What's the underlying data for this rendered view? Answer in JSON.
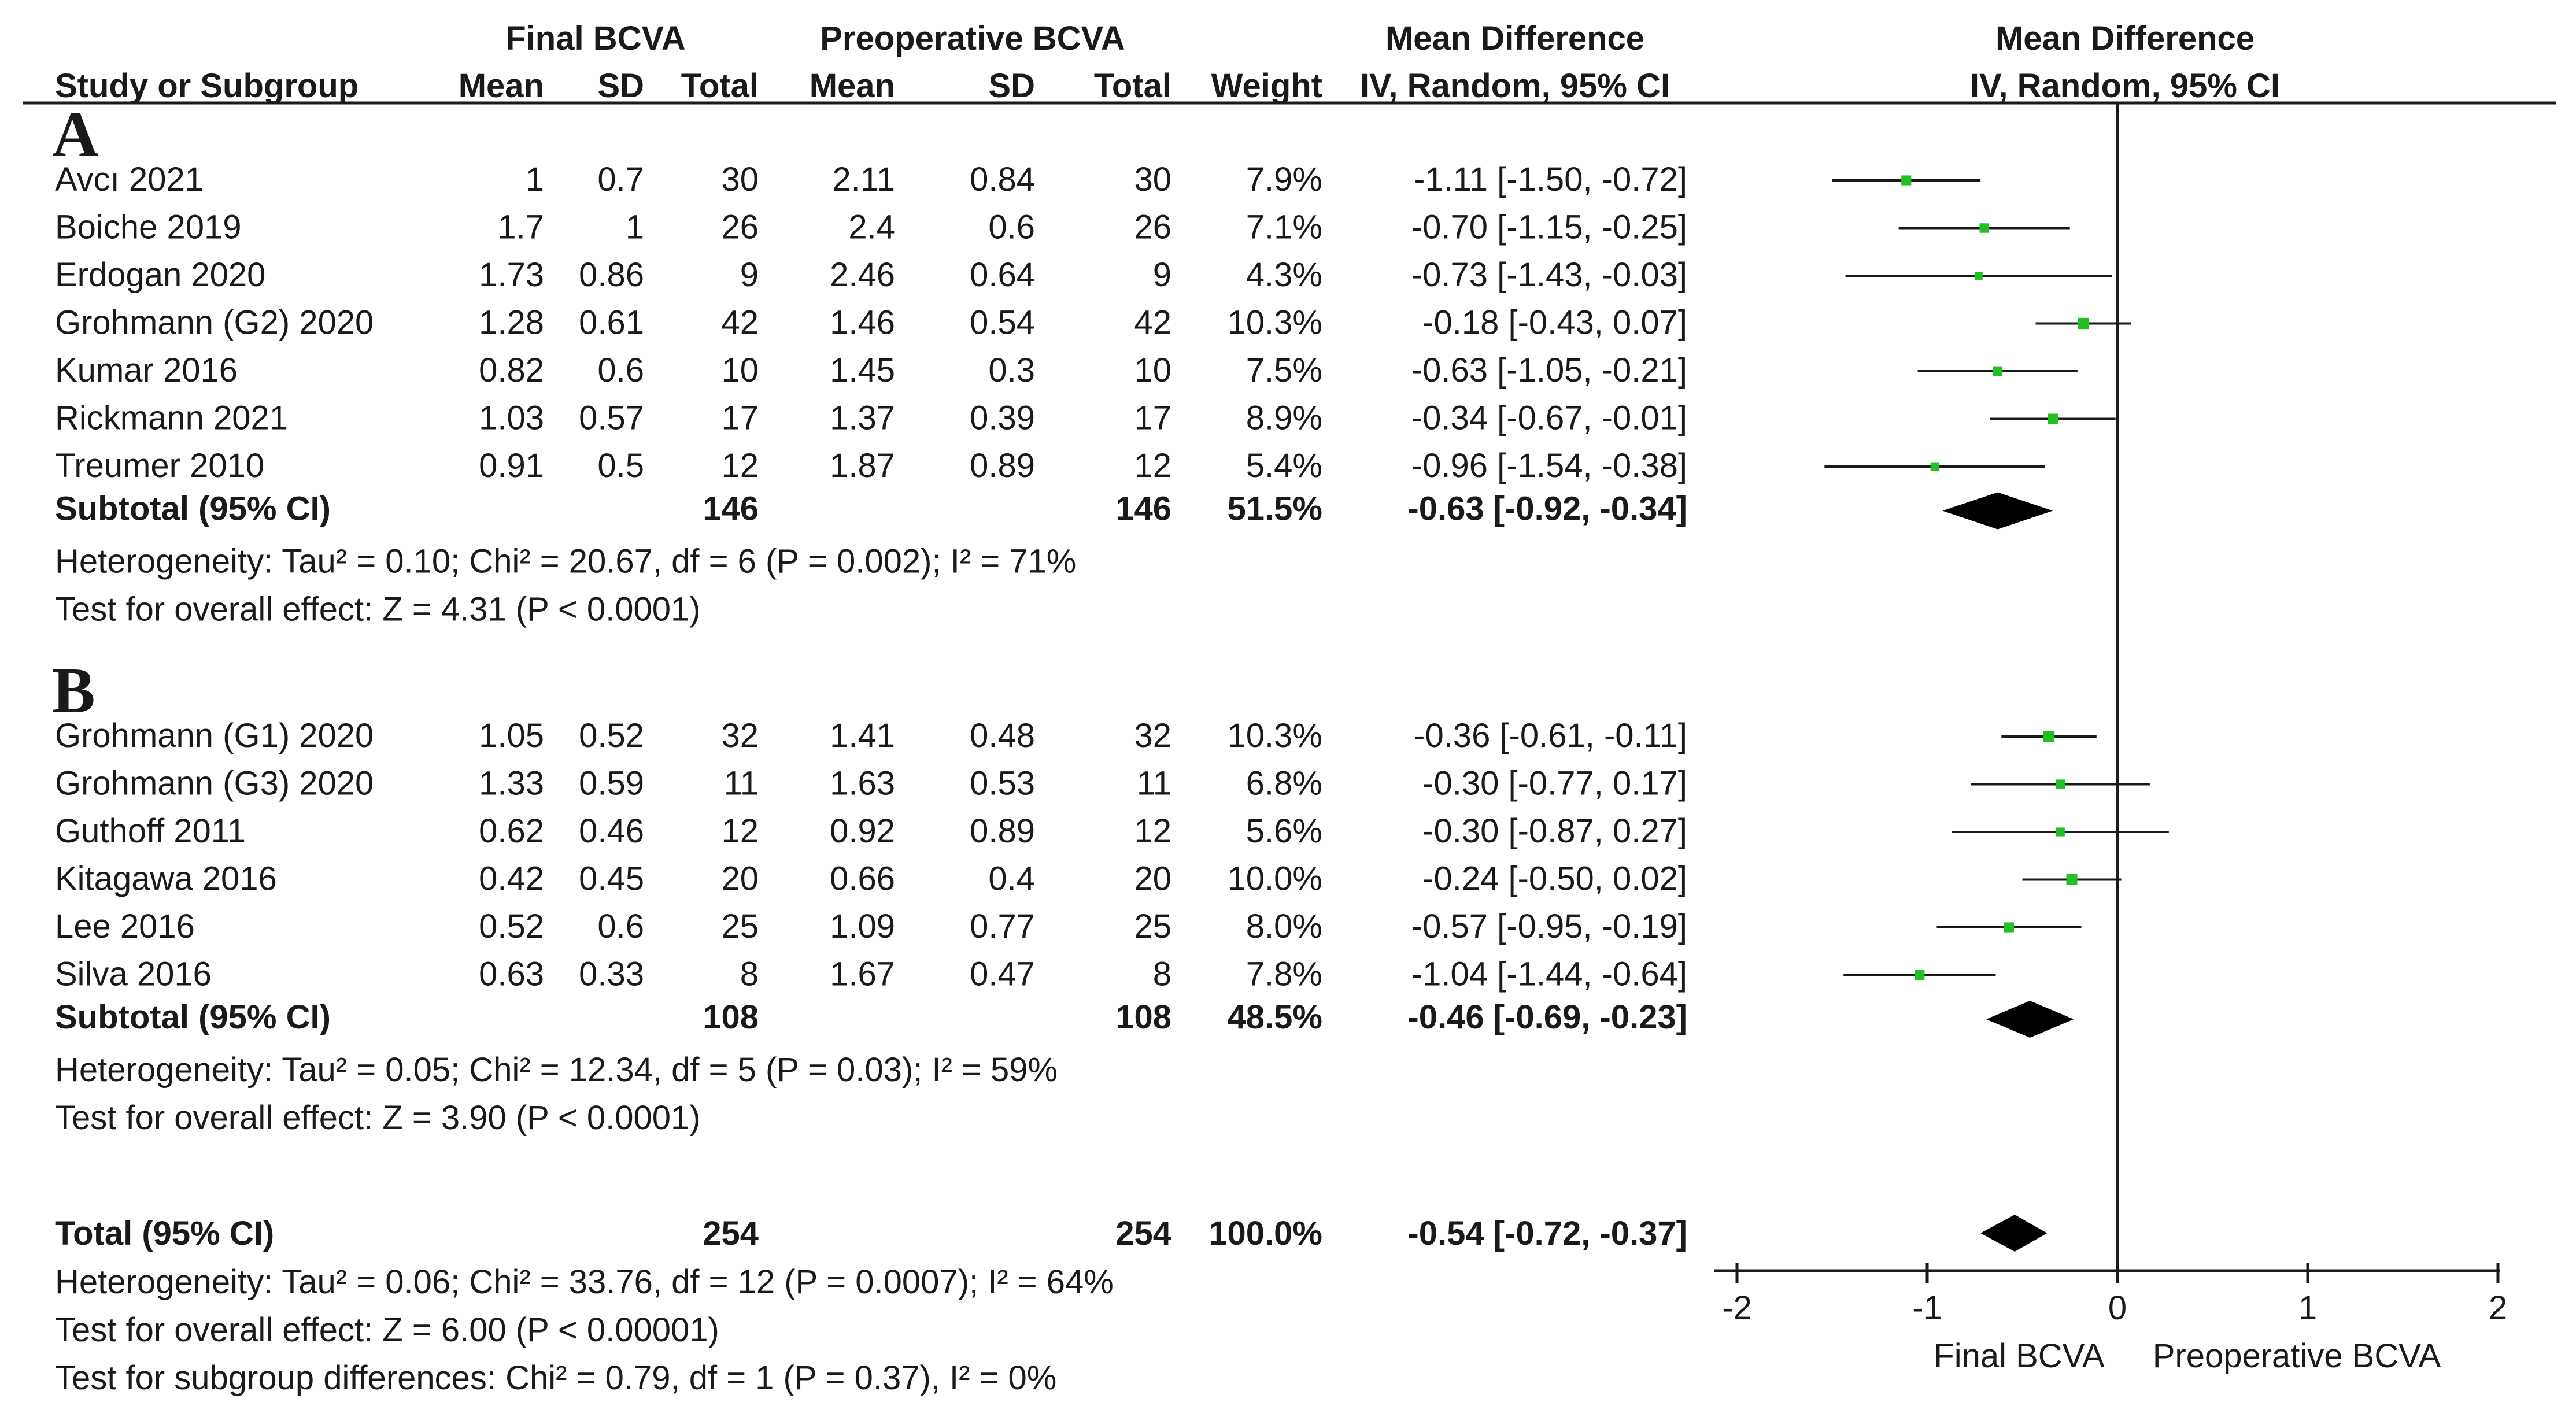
{
  "header": {
    "group_final": "Final BCVA",
    "group_preop": "Preoperative BCVA",
    "group_md": "Mean Difference",
    "group_md_plot": "Mean Difference",
    "col_study": "Study or Subgroup",
    "col_mean1": "Mean",
    "col_sd1": "SD",
    "col_total1": "Total",
    "col_mean2": "Mean",
    "col_sd2": "SD",
    "col_total2": "Total",
    "col_weight": "Weight",
    "col_ci": "IV, Random, 95% CI",
    "col_ci_plot": "IV, Random, 95% CI"
  },
  "sections": [
    {
      "label": "A",
      "studies": [
        {
          "name": "Avcı 2021",
          "mean1": "1",
          "sd1": "0.7",
          "total1": "30",
          "mean2": "2.11",
          "sd2": "0.84",
          "total2": "30",
          "weight": "7.9%",
          "ci": "-1.11 [-1.50, -0.72]"
        },
        {
          "name": "Boiche 2019",
          "mean1": "1.7",
          "sd1": "1",
          "total1": "26",
          "mean2": "2.4",
          "sd2": "0.6",
          "total2": "26",
          "weight": "7.1%",
          "ci": "-0.70 [-1.15, -0.25]"
        },
        {
          "name": "Erdogan 2020",
          "mean1": "1.73",
          "sd1": "0.86",
          "total1": "9",
          "mean2": "2.46",
          "sd2": "0.64",
          "total2": "9",
          "weight": "4.3%",
          "ci": "-0.73 [-1.43, -0.03]"
        },
        {
          "name": "Grohmann (G2) 2020",
          "mean1": "1.28",
          "sd1": "0.61",
          "total1": "42",
          "mean2": "1.46",
          "sd2": "0.54",
          "total2": "42",
          "weight": "10.3%",
          "ci": "-0.18 [-0.43, 0.07]"
        },
        {
          "name": "Kumar 2016",
          "mean1": "0.82",
          "sd1": "0.6",
          "total1": "10",
          "mean2": "1.45",
          "sd2": "0.3",
          "total2": "10",
          "weight": "7.5%",
          "ci": "-0.63 [-1.05, -0.21]"
        },
        {
          "name": "Rickmann 2021",
          "mean1": "1.03",
          "sd1": "0.57",
          "total1": "17",
          "mean2": "1.37",
          "sd2": "0.39",
          "total2": "17",
          "weight": "8.9%",
          "ci": "-0.34 [-0.67, -0.01]"
        },
        {
          "name": "Treumer 2010",
          "mean1": "0.91",
          "sd1": "0.5",
          "total1": "12",
          "mean2": "1.87",
          "sd2": "0.89",
          "total2": "12",
          "weight": "5.4%",
          "ci": "-0.96 [-1.54, -0.38]"
        }
      ],
      "subtotal": {
        "label": "Subtotal (95% CI)",
        "total1": "146",
        "total2": "146",
        "weight": "51.5%",
        "ci": "-0.63 [-0.92, -0.34]"
      },
      "heterogeneity": "Heterogeneity: Tau² = 0.10; Chi² = 20.67, df = 6 (P = 0.002); I² = 71%",
      "overall": "Test for overall effect: Z = 4.31 (P < 0.0001)"
    },
    {
      "label": "B",
      "studies": [
        {
          "name": "Grohmann (G1) 2020",
          "mean1": "1.05",
          "sd1": "0.52",
          "total1": "32",
          "mean2": "1.41",
          "sd2": "0.48",
          "total2": "32",
          "weight": "10.3%",
          "ci": "-0.36 [-0.61, -0.11]"
        },
        {
          "name": "Grohmann (G3) 2020",
          "mean1": "1.33",
          "sd1": "0.59",
          "total1": "11",
          "mean2": "1.63",
          "sd2": "0.53",
          "total2": "11",
          "weight": "6.8%",
          "ci": "-0.30 [-0.77, 0.17]"
        },
        {
          "name": "Guthoff 2011",
          "mean1": "0.62",
          "sd1": "0.46",
          "total1": "12",
          "mean2": "0.92",
          "sd2": "0.89",
          "total2": "12",
          "weight": "5.6%",
          "ci": "-0.30 [-0.87, 0.27]"
        },
        {
          "name": "Kitagawa 2016",
          "mean1": "0.42",
          "sd1": "0.45",
          "total1": "20",
          "mean2": "0.66",
          "sd2": "0.4",
          "total2": "20",
          "weight": "10.0%",
          "ci": "-0.24 [-0.50, 0.02]"
        },
        {
          "name": "Lee 2016",
          "mean1": "0.52",
          "sd1": "0.6",
          "total1": "25",
          "mean2": "1.09",
          "sd2": "0.77",
          "total2": "25",
          "weight": "8.0%",
          "ci": "-0.57 [-0.95, -0.19]"
        },
        {
          "name": "Silva 2016",
          "mean1": "0.63",
          "sd1": "0.33",
          "total1": "8",
          "mean2": "1.67",
          "sd2": "0.47",
          "total2": "8",
          "weight": "7.8%",
          "ci": "-1.04 [-1.44, -0.64]"
        }
      ],
      "subtotal": {
        "label": "Subtotal (95% CI)",
        "total1": "108",
        "total2": "108",
        "weight": "48.5%",
        "ci": "-0.46 [-0.69, -0.23]"
      },
      "heterogeneity": "Heterogeneity: Tau² = 0.05; Chi² = 12.34, df = 5 (P = 0.03); I² = 59%",
      "overall": "Test for overall effect: Z = 3.90 (P < 0.0001)"
    }
  ],
  "total": {
    "label": "Total (95% CI)",
    "total1": "254",
    "total2": "254",
    "weight": "100.0%",
    "ci": "-0.54 [-0.72, -0.37]"
  },
  "footer": {
    "heterogeneity": "Heterogeneity: Tau² = 0.06; Chi² = 33.76, df = 12 (P = 0.0007); I² = 64%",
    "overall": "Test for overall effect: Z = 6.00 (P < 0.00001)",
    "subgroup": "Test for subgroup differences: Chi² = 0.79, df = 1 (P = 0.37), I² = 0%"
  },
  "axis": {
    "ticks": [
      "-2",
      "-1",
      "0",
      "1",
      "2"
    ],
    "left_label": "Final BCVA",
    "right_label": "Preoperative BCVA"
  },
  "colors": {
    "marker": "#22c022",
    "diamond": "#000000",
    "line": "#1a1a1a"
  },
  "chart_data": {
    "type": "forest",
    "title": "Mean Difference IV, Random, 95% CI",
    "xlabel_left": "Final BCVA",
    "xlabel_right": "Preoperative BCVA",
    "xlim": [
      -2,
      2
    ],
    "xticks": [
      -2,
      -1,
      0,
      1,
      2
    ],
    "series": [
      {
        "name": "A",
        "studies": [
          {
            "study": "Avcı 2021",
            "md": -1.11,
            "lo": -1.5,
            "hi": -0.72,
            "weight": 7.9
          },
          {
            "study": "Boiche 2019",
            "md": -0.7,
            "lo": -1.15,
            "hi": -0.25,
            "weight": 7.1
          },
          {
            "study": "Erdogan 2020",
            "md": -0.73,
            "lo": -1.43,
            "hi": -0.03,
            "weight": 4.3
          },
          {
            "study": "Grohmann (G2) 2020",
            "md": -0.18,
            "lo": -0.43,
            "hi": 0.07,
            "weight": 10.3
          },
          {
            "study": "Kumar 2016",
            "md": -0.63,
            "lo": -1.05,
            "hi": -0.21,
            "weight": 7.5
          },
          {
            "study": "Rickmann 2021",
            "md": -0.34,
            "lo": -0.67,
            "hi": -0.01,
            "weight": 8.9
          },
          {
            "study": "Treumer 2010",
            "md": -0.96,
            "lo": -1.54,
            "hi": -0.38,
            "weight": 5.4
          }
        ],
        "subtotal": {
          "md": -0.63,
          "lo": -0.92,
          "hi": -0.34
        }
      },
      {
        "name": "B",
        "studies": [
          {
            "study": "Grohmann (G1) 2020",
            "md": -0.36,
            "lo": -0.61,
            "hi": -0.11,
            "weight": 10.3
          },
          {
            "study": "Grohmann (G3) 2020",
            "md": -0.3,
            "lo": -0.77,
            "hi": 0.17,
            "weight": 6.8
          },
          {
            "study": "Guthoff 2011",
            "md": -0.3,
            "lo": -0.87,
            "hi": 0.27,
            "weight": 5.6
          },
          {
            "study": "Kitagawa 2016",
            "md": -0.24,
            "lo": -0.5,
            "hi": 0.02,
            "weight": 10.0
          },
          {
            "study": "Lee 2016",
            "md": -0.57,
            "lo": -0.95,
            "hi": -0.19,
            "weight": 8.0
          },
          {
            "study": "Silva 2016",
            "md": -1.04,
            "lo": -1.44,
            "hi": -0.64,
            "weight": 7.8
          }
        ],
        "subtotal": {
          "md": -0.46,
          "lo": -0.69,
          "hi": -0.23
        }
      }
    ],
    "total": {
      "md": -0.54,
      "lo": -0.72,
      "hi": -0.37
    }
  }
}
